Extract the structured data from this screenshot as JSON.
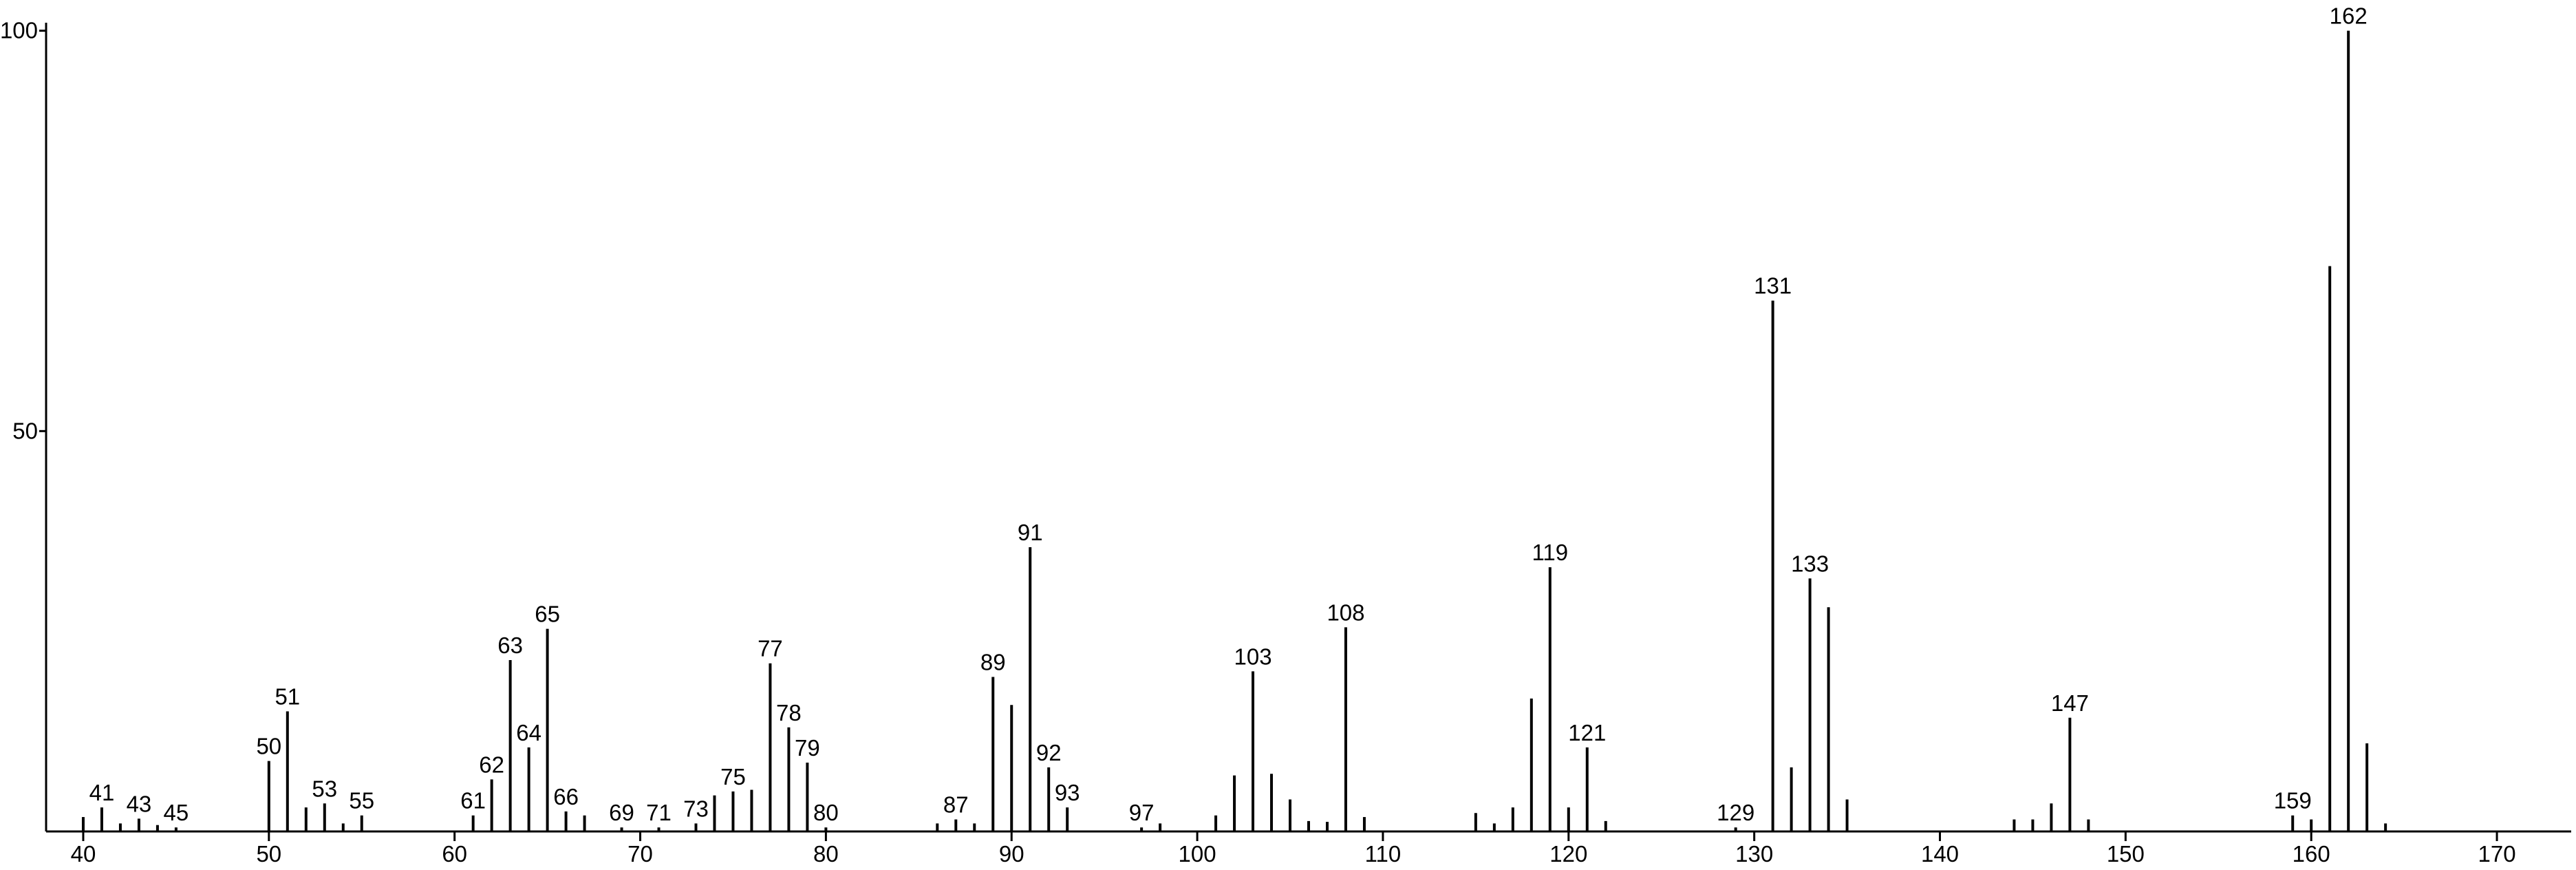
{
  "chart_data": {
    "type": "stem",
    "x": [
      40,
      41,
      42,
      43,
      44,
      45,
      50,
      51,
      52,
      53,
      54,
      55,
      61,
      62,
      63,
      64,
      65,
      66,
      67,
      69,
      71,
      73,
      74,
      75,
      76,
      77,
      78,
      79,
      80,
      86,
      87,
      88,
      89,
      90,
      91,
      92,
      93,
      97,
      98,
      101,
      102,
      103,
      104,
      105,
      106,
      107,
      108,
      109,
      115,
      116,
      117,
      118,
      119,
      120,
      121,
      122,
      129,
      131,
      132,
      133,
      134,
      135,
      144,
      145,
      146,
      147,
      148,
      159,
      160,
      161,
      162,
      163,
      164
    ],
    "values": [
      1.8,
      3,
      1,
      1.6,
      0.8,
      0.5,
      8.8,
      15,
      3,
      3.5,
      1,
      2,
      2,
      6.5,
      21.4,
      10.5,
      25.3,
      2.5,
      2,
      0.5,
      0.5,
      1,
      4.5,
      5,
      5.2,
      21,
      13,
      8.6,
      0.5,
      1,
      1.5,
      1,
      19.3,
      15.8,
      35.5,
      8,
      3,
      0.5,
      1,
      2,
      7,
      20,
      7.2,
      4,
      1.3,
      1.2,
      25.5,
      1.8,
      2.3,
      1,
      3,
      16.6,
      33,
      3,
      10.5,
      1.3,
      0.5,
      66.3,
      8,
      31.6,
      28,
      4,
      1.5,
      1.5,
      3.5,
      14.2,
      1.5,
      2,
      1.5,
      70.6,
      100,
      11,
      1
    ],
    "show_label": [
      false,
      true,
      false,
      true,
      false,
      true,
      true,
      true,
      false,
      true,
      false,
      true,
      true,
      true,
      true,
      true,
      true,
      true,
      false,
      true,
      true,
      true,
      false,
      true,
      false,
      true,
      true,
      true,
      true,
      false,
      true,
      false,
      true,
      false,
      true,
      true,
      true,
      true,
      false,
      false,
      false,
      true,
      false,
      false,
      false,
      false,
      true,
      false,
      false,
      false,
      false,
      false,
      true,
      false,
      true,
      false,
      true,
      true,
      false,
      true,
      false,
      false,
      false,
      false,
      false,
      true,
      false,
      true,
      false,
      false,
      true,
      false,
      false
    ],
    "color": "#000000",
    "xlim": [
      38,
      174
    ],
    "ylim": [
      0,
      101
    ],
    "xticks": [
      40,
      50,
      60,
      70,
      80,
      90,
      100,
      110,
      120,
      130,
      140,
      150,
      160,
      170
    ],
    "yticks": [
      50,
      100
    ]
  }
}
